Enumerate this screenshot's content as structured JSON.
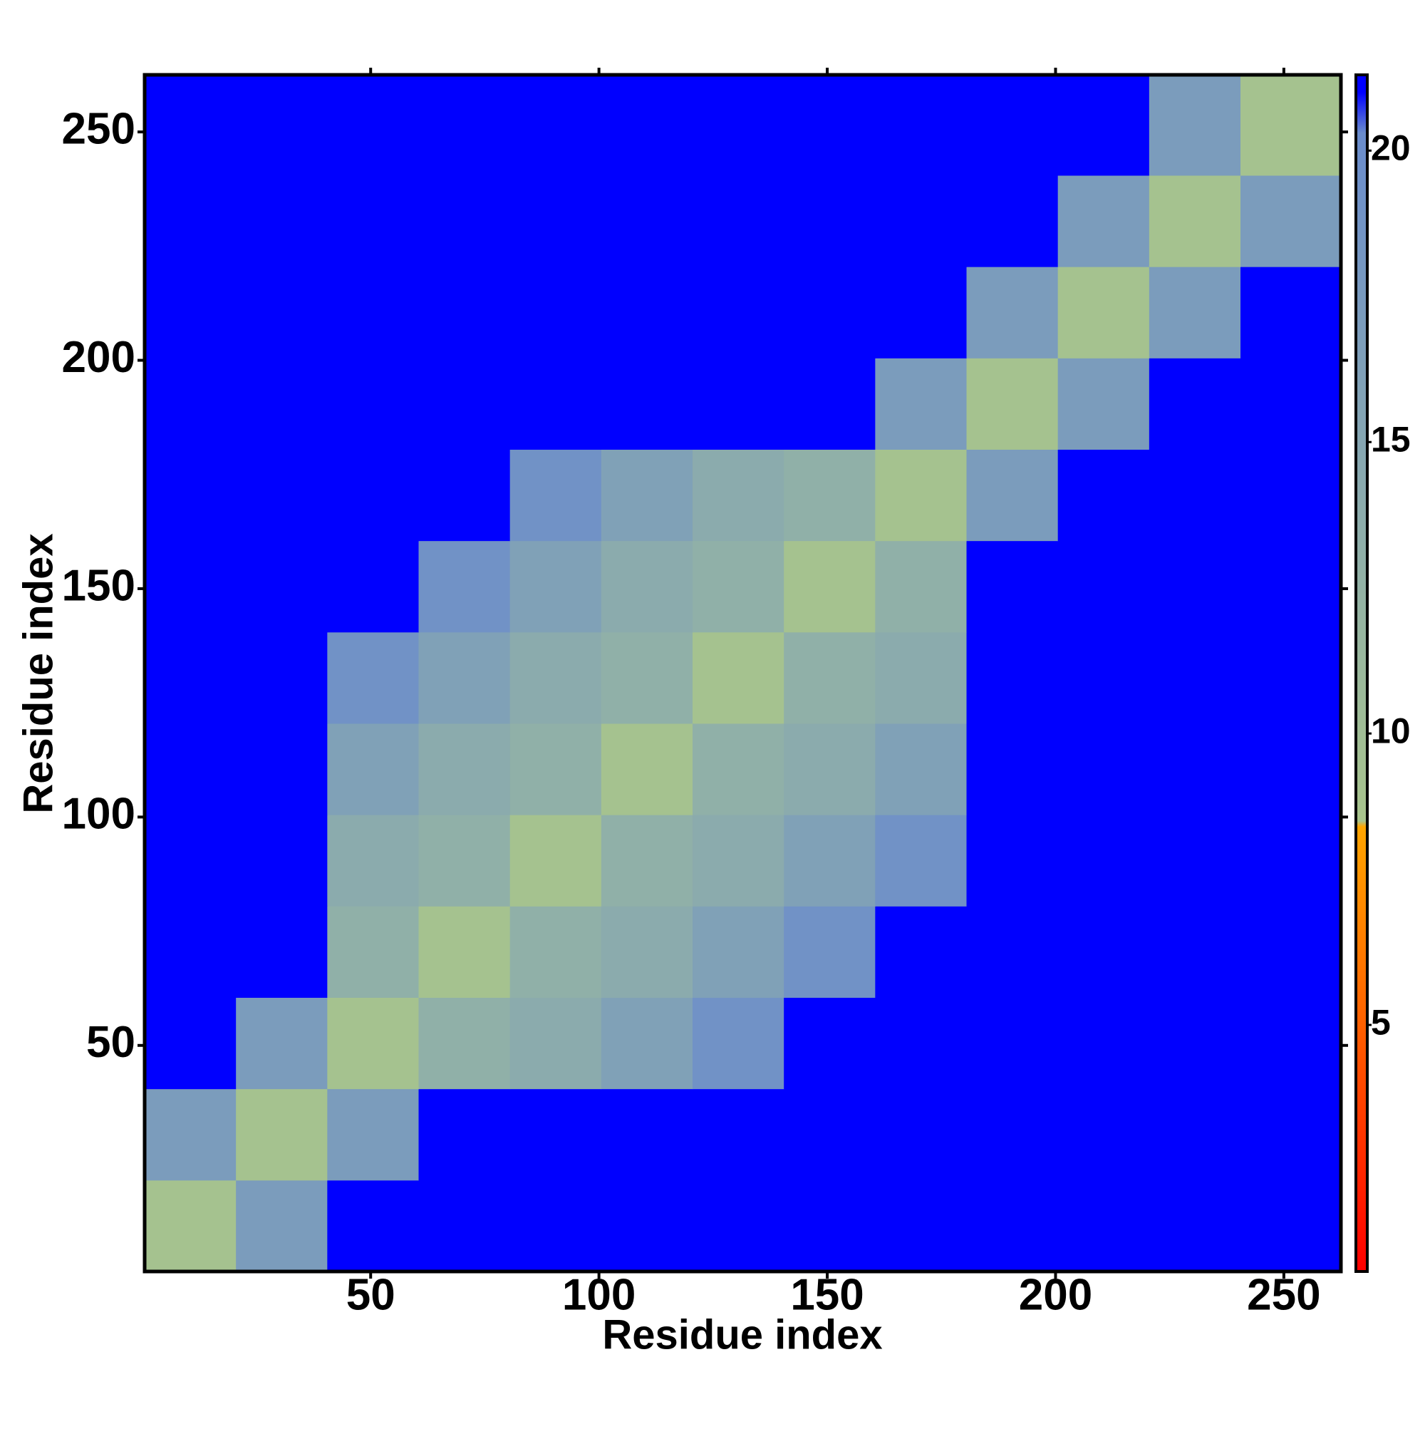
{
  "chart_data": {
    "type": "heatmap",
    "x_label": "Residue index",
    "y_label": "Residue index",
    "xlim": [
      0.5,
      262.5
    ],
    "ylim": [
      0.5,
      262.5
    ],
    "xticks": [
      50,
      100,
      150,
      200,
      250
    ],
    "yticks": [
      50,
      100,
      150,
      200,
      250
    ],
    "bins": [
      0.5,
      20.5,
      40.5,
      60.5,
      80.5,
      100.5,
      120.5,
      140.5,
      160.5,
      180.5,
      200.5,
      220.5,
      240.5,
      262.5
    ],
    "values": [
      [
        9,
        17,
        21,
        21,
        21,
        21,
        21,
        21,
        21,
        21,
        21,
        21,
        21
      ],
      [
        17,
        9,
        17,
        21,
        21,
        21,
        21,
        21,
        21,
        21,
        21,
        21,
        21
      ],
      [
        21,
        17,
        9,
        13,
        14,
        16,
        19,
        21,
        21,
        21,
        21,
        21,
        21
      ],
      [
        21,
        21,
        13,
        9,
        13,
        14,
        16,
        19,
        21,
        21,
        21,
        21,
        21
      ],
      [
        21,
        21,
        14,
        13,
        9,
        13,
        14,
        16,
        19,
        21,
        21,
        21,
        21
      ],
      [
        21,
        21,
        16,
        14,
        13,
        9,
        13,
        14,
        16,
        21,
        21,
        21,
        21
      ],
      [
        21,
        21,
        19,
        16,
        14,
        13,
        9,
        13,
        14,
        21,
        21,
        21,
        21
      ],
      [
        21,
        21,
        21,
        19,
        16,
        14,
        13,
        9,
        13,
        21,
        21,
        21,
        21
      ],
      [
        21,
        21,
        21,
        21,
        19,
        16,
        14,
        13,
        9,
        17,
        21,
        21,
        21
      ],
      [
        21,
        21,
        21,
        21,
        21,
        21,
        21,
        21,
        17,
        9,
        17,
        21,
        21
      ],
      [
        21,
        21,
        21,
        21,
        21,
        21,
        21,
        21,
        21,
        17,
        9,
        17,
        21
      ],
      [
        21,
        21,
        21,
        21,
        21,
        21,
        21,
        21,
        21,
        21,
        17,
        9,
        17
      ],
      [
        21,
        21,
        21,
        21,
        21,
        21,
        21,
        21,
        21,
        21,
        21,
        17,
        9
      ]
    ],
    "zlim": [
      0.77,
      21.3
    ],
    "zticks": [
      5,
      10,
      15,
      20
    ],
    "colorscale": [
      {
        "value": 0.77,
        "color": "#ff0000"
      },
      {
        "value": 5,
        "color": "#ff6000"
      },
      {
        "value": 8.4,
        "color": "#ffa500"
      },
      {
        "value": 8.5,
        "color": "#a8c48c"
      },
      {
        "value": 13,
        "color": "#90b0a8"
      },
      {
        "value": 20.3,
        "color": "#6a8ccc"
      },
      {
        "value": 21,
        "color": "#0000ff"
      },
      {
        "value": 21.3,
        "color": "#0000ff"
      }
    ]
  }
}
